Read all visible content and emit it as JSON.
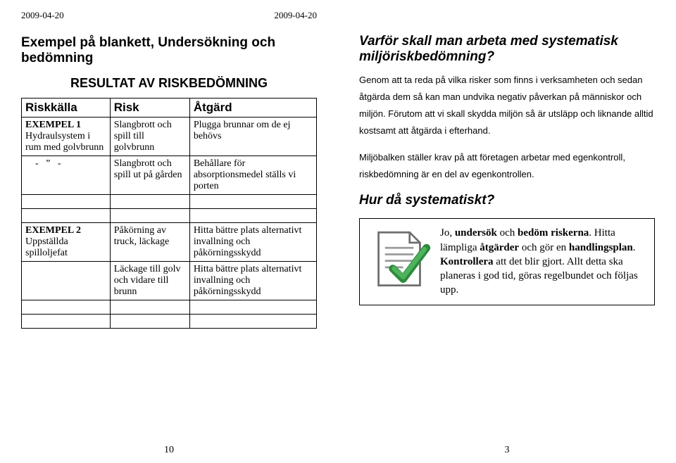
{
  "dates": {
    "left": "2009-04-20",
    "right": "2009-04-20"
  },
  "left": {
    "title": "Exempel på blankett, Undersökning och bedömning",
    "subtitle": "RESULTAT AV RISKBEDÖMNING",
    "headers": {
      "c0": "Riskkälla",
      "c1": "Risk",
      "c2": "Åtgärd"
    },
    "rows1": {
      "r0": {
        "c0": "EXEMPEL 1\nHydraulsystem i rum med golvbrunn",
        "c1": "Slangbrott och spill till golvbrunn",
        "c2": "Plugga brunnar om de ej behövs"
      },
      "r1": {
        "c0": "    -   ”   -",
        "c1": "Slangbrott och spill ut på gården",
        "c2": "Behållare för absorptionsmedel ställs vi porten"
      }
    },
    "rows2": {
      "r0": {
        "c0": "EXEMPEL 2\nUppställda spilloljefat",
        "c1": "Påkörning av truck, läckage",
        "c2": "Hitta bättre plats alternativt invallning och påkörningsskydd"
      },
      "r1": {
        "c0": "",
        "c1": "Läckage till golv och vidare till brunn",
        "c2": "Hitta bättre plats alternativt invallning och påkörningsskydd"
      },
      "r2": {
        "c0": "",
        "c1": "",
        "c2": ""
      },
      "r3": {
        "c0": "",
        "c1": "",
        "c2": ""
      }
    },
    "pagenum": "10"
  },
  "right": {
    "title": "Varför skall man arbeta med systematisk miljöriskbedömning?",
    "para1": "Genom att ta reda på vilka risker som finns i verksamheten och sedan åtgärda dem så kan man undvika negativ påverkan på människor och miljön. Förutom att vi skall skydda miljön så är utsläpp och liknande alltid kostsamt att åtgärda i efterhand.",
    "para2": "Miljöbalken ställer krav på att företagen arbetar med egenkontroll, riskbedömning är en del av egenkontrollen.",
    "h2": "Hur då systematiskt?",
    "box": {
      "text_html": "Jo, <b>undersök</b> och <b>bedöm riskerna</b>. Hitta lämpliga <b>åtgärder</b> och gör en <b>handlingsplan</b>. <b>Kontrollera</b> att det blir gjort. Allt detta ska planeras i god tid, göras regelbundet och följas upp."
    },
    "pagenum": "3"
  },
  "icon": {
    "paper_fill": "#ffffff",
    "paper_stroke": "#6e6e6e",
    "line_color": "#9a9a9a",
    "check_stroke": "#2e8b3d",
    "check_fill": "#4fb25c"
  }
}
